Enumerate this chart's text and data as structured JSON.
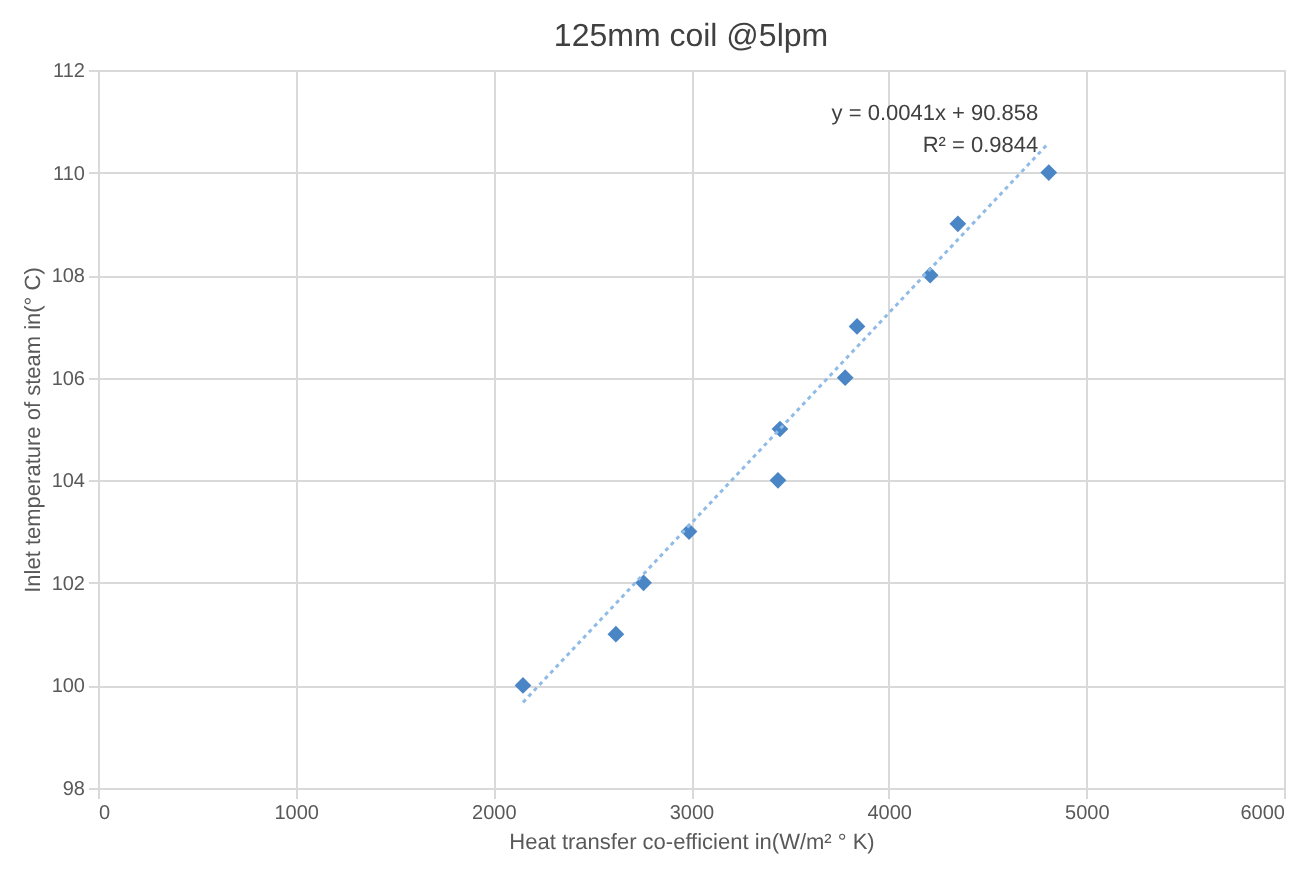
{
  "chart_data": {
    "type": "scatter",
    "title": "125mm coil @5lpm",
    "xlabel": "Heat transfer co-efficient in(W/m² ° K)",
    "ylabel": "Inlet temperature of steam in(° C)",
    "series": [
      {
        "color": "#4a86c5",
        "marker": "diamond",
        "x": [
          2150,
          2620,
          2760,
          2990,
          3440,
          3450,
          3780,
          3840,
          4210,
          4350,
          4810
        ],
        "values": [
          100,
          101,
          102,
          103,
          104,
          105,
          106,
          107,
          108,
          109,
          110
        ]
      },
      {
        "type": "line",
        "color": "#8fbbe6",
        "line_style": "dotted",
        "x": [
          2150,
          4810
        ],
        "values": [
          99.67,
          110.58
        ]
      }
    ],
    "annotations": [
      "y = 0.0041x + 90.858",
      "R² = 0.9844"
    ],
    "xlim": [
      0,
      6000
    ],
    "xticks": [
      0,
      1000,
      2000,
      3000,
      4000,
      5000,
      6000
    ],
    "ylim": [
      98,
      112
    ],
    "yticks": [
      98,
      100,
      102,
      104,
      106,
      108,
      110,
      112
    ],
    "grid": true
  }
}
